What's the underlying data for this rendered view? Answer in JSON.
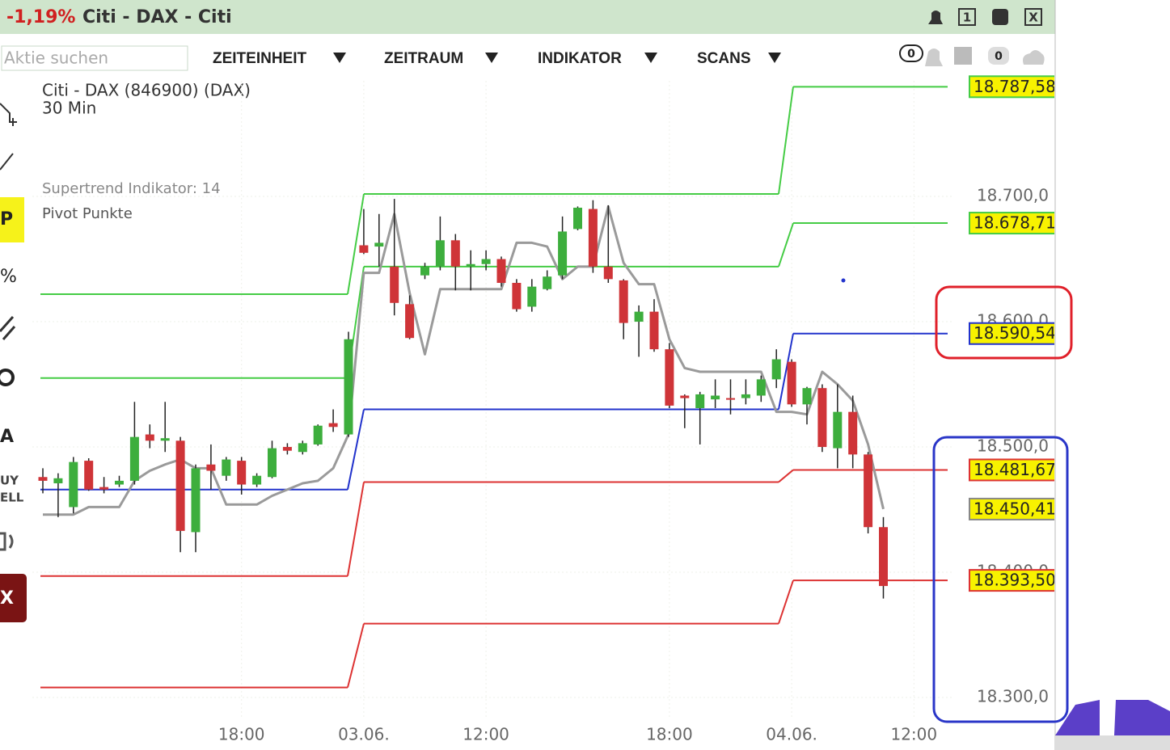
{
  "window": {
    "change": "-1,19%",
    "title": "Citi - DAX - Citi",
    "buttons": [
      "1",
      "X"
    ]
  },
  "toolbar": {
    "search_placeholder": "Aktie suchen",
    "menus": [
      "ZEITEINHEIT",
      "ZEITRAUM",
      "INDIKATOR",
      "SCANS"
    ],
    "badges": [
      "0",
      "0"
    ]
  },
  "sidebar": [
    "P",
    "%",
    "A",
    "UY",
    "ELL",
    "X"
  ],
  "chart_data": {
    "type": "candlestick",
    "title": "Citi - DAX (846900) (DAX)",
    "subtitle": "30 Min",
    "categories": [
      null,
      null,
      null,
      null,
      null,
      null,
      null,
      null,
      null,
      null,
      null,
      null,
      null,
      "18:00",
      null,
      null,
      null,
      null,
      null,
      null,
      null,
      "03.06.",
      null,
      null,
      null,
      null,
      null,
      null,
      null,
      "12:00",
      null,
      null,
      null,
      null,
      null,
      null,
      null,
      null,
      null,
      null,
      null,
      "18:00",
      null,
      null,
      null,
      null,
      null,
      null,
      null,
      "04.06.",
      null,
      null,
      null,
      null,
      null,
      null,
      null,
      "12:00"
    ],
    "candles": {
      "up_color": "#3dae3d",
      "down_color": "#cf3438",
      "open": [
        18476,
        18471,
        18452,
        18489,
        18468,
        18470,
        18473,
        18510,
        18505,
        18505,
        18432,
        18486,
        18477,
        18489,
        18470,
        18476,
        18500,
        18496,
        18502,
        18519,
        18510,
        18661,
        18660,
        18644,
        18614,
        18637,
        18644,
        18665,
        18644,
        18646,
        18650,
        18631,
        18612,
        18626,
        18637,
        18674,
        18690,
        18644,
        18633,
        18600,
        18608,
        18578,
        18541,
        18531,
        18538,
        18539,
        18539,
        18541,
        18554,
        18568,
        18534,
        18547,
        18499,
        18528,
        18494,
        18436,
        null,
        null
      ],
      "high": [
        18483,
        18479,
        18492,
        18491,
        18476,
        18477,
        18536,
        18518,
        18536,
        18508,
        18486,
        18502,
        18492,
        18492,
        18479,
        18505,
        18503,
        18505,
        18518,
        18530,
        18592,
        18690,
        18686,
        18698,
        18621,
        18647,
        18684,
        18670,
        18657,
        18657,
        18652,
        18634,
        18634,
        18641,
        18684,
        18692,
        18697,
        18693,
        18634,
        18613,
        18618,
        18583,
        18542,
        18544,
        18554,
        18554,
        18554,
        18557,
        18578,
        18570,
        18548,
        18550,
        18550,
        18541,
        18496,
        18444,
        null,
        null
      ],
      "low": [
        18463,
        18444,
        18447,
        18465,
        18463,
        18468,
        18470,
        18499,
        18496,
        18416,
        18416,
        18466,
        18473,
        18462,
        18468,
        18475,
        18494,
        18494,
        18501,
        18512,
        18508,
        18654,
        18644,
        18605,
        18586,
        18634,
        18641,
        18625,
        18625,
        18641,
        18628,
        18608,
        18608,
        18625,
        18634,
        18673,
        18639,
        18631,
        18586,
        18572,
        18576,
        18531,
        18515,
        18502,
        18531,
        18526,
        18534,
        18536,
        18547,
        18532,
        18518,
        18496,
        18483,
        18483,
        18431,
        18379,
        null,
        null
      ],
      "close": [
        18473,
        18475,
        18488,
        18466,
        18466,
        18473,
        18508,
        18505,
        18507,
        18433,
        18483,
        18481,
        18490,
        18470,
        18477,
        18499,
        18497,
        18503,
        18517,
        18516,
        18586,
        18655,
        18663,
        18615,
        18587,
        18644,
        18665,
        18644,
        18646,
        18650,
        18631,
        18610,
        18628,
        18636,
        18672,
        18691,
        18644,
        18634,
        18599,
        18608,
        18578,
        18533,
        18539,
        18542,
        18541,
        18538,
        18542,
        18554,
        18570,
        18534,
        18547,
        18500,
        18528,
        18494,
        18436,
        18389,
        null,
        null
      ]
    },
    "series": [
      {
        "name": "Supertrend Indikator: 14",
        "color": "#9a9a9a",
        "values": [
          18446,
          18446,
          18446,
          18452,
          18452,
          18452,
          18473,
          18481,
          18486,
          18490,
          18483,
          18483,
          18454,
          18454,
          18454,
          18461,
          18466,
          18471,
          18473,
          18483,
          18510,
          18639,
          18639,
          18686,
          18623,
          18574,
          18626,
          18626,
          18626,
          18626,
          18626,
          18663,
          18663,
          18660,
          18634,
          18644,
          18644,
          18692,
          18647,
          18630,
          18630,
          18586,
          18563,
          18560,
          18560,
          18560,
          18560,
          18560,
          18528,
          18528,
          18526,
          18560,
          18550,
          18537,
          18502,
          18450.41,
          null,
          null
        ],
        "last_label": "18.450,41"
      }
    ],
    "pivots": {
      "name": "Pivot Punkte",
      "levels": [
        {
          "color": "#45cc45",
          "values": [
            18622,
            18702,
            18787.58
          ],
          "last_label": "18.787,58"
        },
        {
          "color": "#45cc45",
          "values": [
            18555,
            18644,
            18678.71
          ],
          "last_label": "18.678,71"
        },
        {
          "color": "#2233cc",
          "values": [
            18466,
            18530,
            18590.54
          ],
          "last_label": "18.590,54"
        },
        {
          "color": "#dd3333",
          "values": [
            18397,
            18472,
            18481.67
          ],
          "last_label": "18.481,67"
        },
        {
          "color": "#dd3333",
          "values": [
            18308,
            18359,
            18393.5
          ],
          "last_label": "18.393,50"
        }
      ]
    },
    "ylim": [
      18282.6,
      18792.3
    ],
    "yticks": [
      {
        "value": 18300,
        "label": "18.300,0"
      },
      {
        "value": 18400,
        "label": "18.400,0"
      },
      {
        "value": 18500,
        "label": "18.500,0"
      },
      {
        "value": 18600,
        "label": "18.600,0"
      },
      {
        "value": 18700,
        "label": "18.700,0"
      }
    ],
    "grid": true
  }
}
